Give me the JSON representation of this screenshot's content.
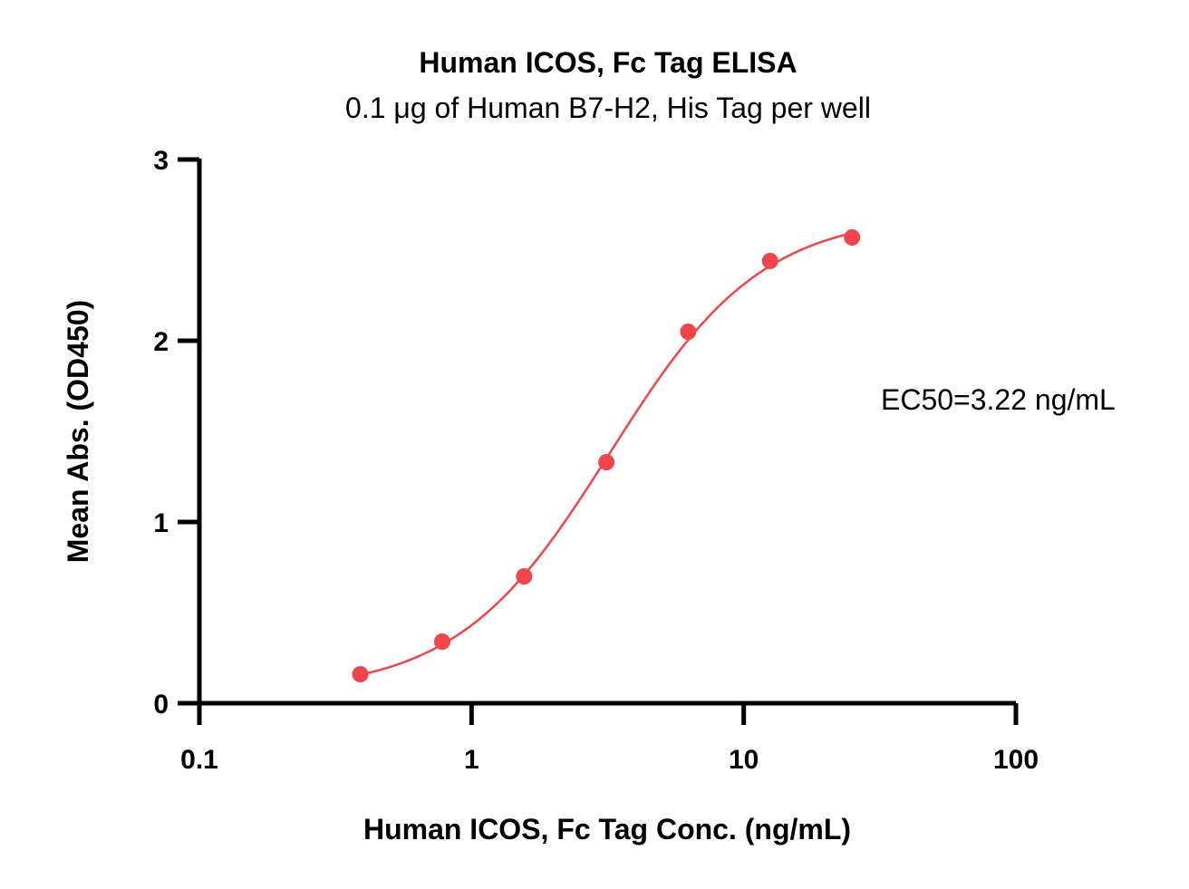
{
  "chart_data": {
    "type": "scatter",
    "title": "Human ICOS, Fc Tag ELISA",
    "subtitle": "0.1 μg of Human B7-H2, His Tag per well",
    "xlabel": "Human ICOS, Fc Tag Conc. (ng/mL)",
    "ylabel": "Mean Abs. (OD450)",
    "x_scale": "log",
    "xlim": [
      0.1,
      100
    ],
    "ylim": [
      0,
      3
    ],
    "x_ticks": [
      0.1,
      1,
      10,
      100
    ],
    "x_tick_labels": [
      "0.1",
      "1",
      "10",
      "100"
    ],
    "y_ticks": [
      0,
      1,
      2,
      3
    ],
    "y_tick_labels": [
      "0",
      "1",
      "2",
      "3"
    ],
    "grid": false,
    "color": "#f0454a",
    "series": [
      {
        "x": [
          0.39,
          0.78,
          1.56,
          3.13,
          6.25,
          12.5,
          25
        ],
        "y": [
          0.16,
          0.34,
          0.7,
          1.33,
          2.05,
          2.44,
          2.57
        ],
        "fit": "4PL"
      }
    ],
    "annotations": [
      {
        "text": "EC50=3.22 ng/mL"
      }
    ]
  }
}
